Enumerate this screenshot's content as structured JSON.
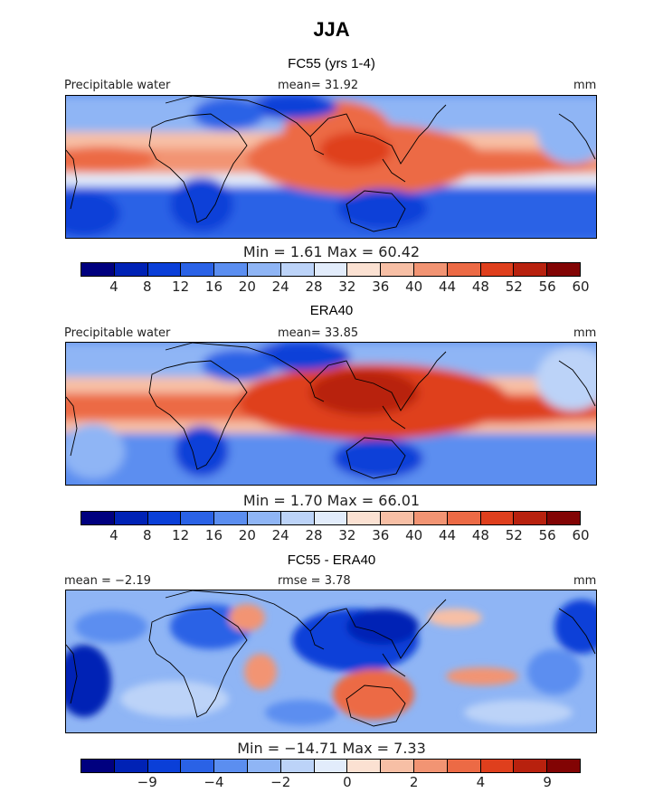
{
  "title": "JJA",
  "panels": [
    {
      "title": "FC55 (yrs 1-4)",
      "left_label": "Precipitable water",
      "center_label": "mean=   31.92",
      "unit": "mm",
      "min_max": "Min =    1.61  Max =   60.42",
      "colorbar": "absolute"
    },
    {
      "title": "ERA40",
      "left_label": "Precipitable water",
      "center_label": "mean=   33.85",
      "unit": "mm",
      "min_max": "Min =    1.70  Max =   66.01",
      "colorbar": "absolute"
    },
    {
      "title": "FC55 - ERA40",
      "left_label": "mean =   −2.19",
      "center_label": "rmse =    3.78",
      "unit": "mm",
      "min_max": "Min = −14.71  Max =    7.33",
      "colorbar": "difference"
    }
  ],
  "colorbars": {
    "absolute": {
      "colors": [
        "#00007f",
        "#0022b5",
        "#0a3fd8",
        "#2a62e6",
        "#5b8ef0",
        "#8fb5f5",
        "#bcd3f8",
        "#e2ecfb",
        "#fbe1d2",
        "#f7bfa5",
        "#f29473",
        "#ec6a45",
        "#df3f1d",
        "#b8210e",
        "#820404"
      ],
      "ticks": [
        "4",
        "8",
        "12",
        "16",
        "20",
        "24",
        "28",
        "32",
        "36",
        "40",
        "44",
        "48",
        "52",
        "56",
        "60"
      ]
    },
    "difference": {
      "colors": [
        "#00007f",
        "#0022b5",
        "#0a3fd8",
        "#2a62e6",
        "#5b8ef0",
        "#8fb5f5",
        "#bcd3f8",
        "#e2ecfb",
        "#fbe1d2",
        "#f7bfa5",
        "#f29473",
        "#ec6a45",
        "#df3f1d",
        "#b8210e",
        "#820404"
      ],
      "ticks": [
        "−9",
        "−4",
        "−2",
        "0",
        "2",
        "4",
        "9"
      ],
      "tick_positions": [
        2,
        4,
        6,
        8,
        10,
        12,
        14
      ]
    }
  }
}
